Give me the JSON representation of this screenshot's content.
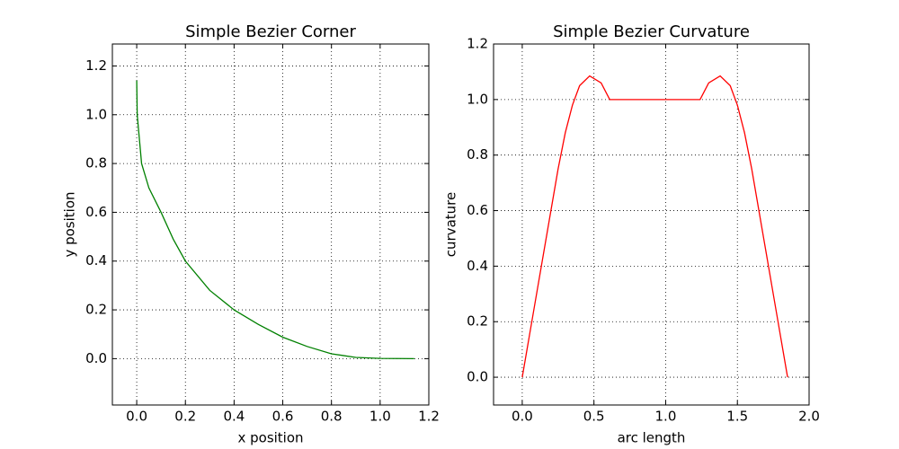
{
  "chart_data": [
    {
      "type": "line",
      "title": "Simple Bezier Corner",
      "xlabel": "x position",
      "ylabel": "y position",
      "x": [
        0,
        0.002,
        0.02,
        0.05,
        0.1,
        0.15,
        0.2,
        0.3,
        0.4,
        0.5,
        0.6,
        0.7,
        0.8,
        0.9,
        1.0,
        1.14
      ],
      "series": [
        {
          "color": "#008000",
          "values": [
            1.14,
            1.0,
            0.8,
            0.7,
            0.6,
            0.49,
            0.4,
            0.28,
            0.2,
            0.14,
            0.088,
            0.05,
            0.02,
            0.005,
            0.001,
            0
          ]
        }
      ],
      "xlim": [
        -0.1,
        1.2
      ],
      "ylim": [
        -0.19,
        1.29
      ],
      "xticks": [
        {
          "value": 0,
          "label": "0.0"
        },
        0.2,
        0.4,
        0.6,
        0.8,
        {
          "value": 1,
          "label": "1.0"
        },
        1.2
      ],
      "yticks": [
        {
          "value": 0,
          "label": "0.0"
        },
        0.2,
        0.4,
        0.6,
        0.8,
        {
          "value": 1,
          "label": "1.0"
        },
        1.2
      ],
      "grid": true
    },
    {
      "type": "line",
      "title": "Simple Bezier Curvature",
      "xlabel": "arc length",
      "ylabel": "curvature",
      "x": [
        0,
        0.05,
        0.1,
        0.15,
        0.2,
        0.25,
        0.3,
        0.35,
        0.4,
        0.47,
        0.55,
        0.61,
        1.24,
        1.3,
        1.38,
        1.45,
        1.5,
        1.55,
        1.6,
        1.65,
        1.7,
        1.75,
        1.8,
        1.85
      ],
      "series": [
        {
          "color": "#ff0000",
          "values": [
            0,
            0.15,
            0.3,
            0.45,
            0.6,
            0.75,
            0.88,
            0.98,
            1.05,
            1.085,
            1.06,
            1.0,
            1.0,
            1.06,
            1.085,
            1.05,
            0.98,
            0.88,
            0.75,
            0.6,
            0.45,
            0.3,
            0.15,
            0
          ]
        }
      ],
      "xlim": [
        -0.2,
        2.0
      ],
      "ylim": [
        -0.1,
        1.2
      ],
      "xticks": [
        {
          "value": 0,
          "label": "0.0"
        },
        0.5,
        {
          "value": 1,
          "label": "1.0"
        },
        1.5,
        {
          "value": 2,
          "label": "2.0"
        }
      ],
      "yticks": [
        {
          "value": 0,
          "label": "0.0"
        },
        0.2,
        0.4,
        0.6,
        0.8,
        {
          "value": 1,
          "label": "1.0"
        },
        1.2
      ],
      "grid": true
    }
  ]
}
